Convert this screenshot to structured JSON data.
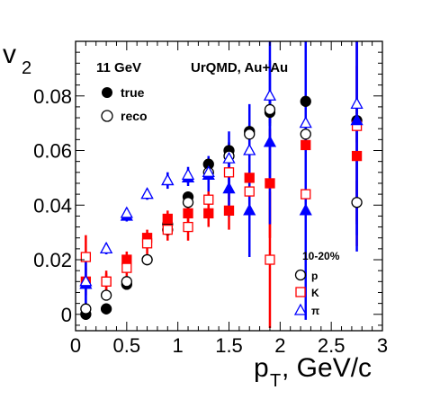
{
  "chart_data": {
    "type": "scatter",
    "title": "",
    "xlabel": "p",
    "xlabel_sub": "T",
    "xlabel_unit": ", GeV/c",
    "ylabel": "v",
    "ylabel_sub": "2",
    "xlim": [
      0,
      3
    ],
    "ylim": [
      -0.006,
      0.1
    ],
    "x_ticks": [
      "0",
      "0.5",
      "1",
      "1.5",
      "2",
      "2.5",
      "3"
    ],
    "y_ticks": [
      "0",
      "0.02",
      "0.04",
      "0.06",
      "0.08"
    ],
    "grid": false,
    "annotations": {
      "energy": "11 GeV",
      "system": "UrQMD, Au+Au",
      "centrality": "10-20%"
    },
    "legend_style": [
      {
        "label": "true",
        "marker": "filled-circle"
      },
      {
        "label": "reco",
        "marker": "open-circle"
      }
    ],
    "legend_species": [
      {
        "label": "p",
        "marker": "open-circle",
        "color": "#000000"
      },
      {
        "label": "K",
        "marker": "open-square",
        "color": "#ff0000"
      },
      {
        "label": "π",
        "marker": "open-triangle",
        "color": "#0000ff"
      }
    ],
    "colors": {
      "proton": "#000000",
      "kaon": "#ff0000",
      "pion": "#0000ff"
    },
    "series": [
      {
        "species": "p",
        "style": "true",
        "marker": "filled-circle",
        "color": "#000000",
        "x": [
          0.1,
          0.3,
          0.5,
          0.7,
          0.9,
          1.1,
          1.3,
          1.5,
          1.7,
          1.9,
          2.25,
          2.75
        ],
        "y": [
          0.0,
          0.002,
          0.011,
          0.02,
          0.033,
          0.043,
          0.055,
          0.06,
          0.067,
          0.074,
          0.078,
          0.071
        ],
        "err": [
          0.002,
          0.002,
          0.002,
          0.002,
          0.002,
          0.002,
          0.002,
          0.003,
          0.004,
          0.005,
          0.006,
          0.008
        ]
      },
      {
        "species": "p",
        "style": "reco",
        "marker": "open-circle",
        "color": "#000000",
        "x": [
          0.1,
          0.3,
          0.5,
          0.7,
          0.9,
          1.1,
          1.3,
          1.5,
          1.7,
          1.9,
          2.25,
          2.75
        ],
        "y": [
          0.002,
          0.007,
          0.012,
          0.02,
          0.031,
          0.041,
          0.052,
          0.058,
          0.066,
          0.075,
          0.066,
          0.041
        ],
        "err": [
          0.002,
          0.002,
          0.002,
          0.002,
          0.002,
          0.002,
          0.003,
          0.003,
          0.004,
          0.005,
          0.006,
          0.008
        ]
      },
      {
        "species": "K",
        "style": "true",
        "marker": "filled-square",
        "color": "#ff0000",
        "x": [
          0.1,
          0.3,
          0.5,
          0.7,
          0.9,
          1.1,
          1.3,
          1.5,
          1.7,
          1.9,
          2.25,
          2.75
        ],
        "y": [
          0.012,
          0.012,
          0.02,
          0.028,
          0.035,
          0.037,
          0.037,
          0.038,
          0.05,
          0.048,
          0.062,
          0.058
        ],
        "err": [
          0.005,
          0.003,
          0.003,
          0.003,
          0.003,
          0.004,
          0.005,
          0.007,
          0.013,
          0.02,
          0.028,
          0.033
        ]
      },
      {
        "species": "K",
        "style": "reco",
        "marker": "open-square",
        "color": "#ff0000",
        "x": [
          0.1,
          0.3,
          0.5,
          0.7,
          0.9,
          1.1,
          1.3,
          1.5,
          1.7,
          1.9,
          2.25,
          2.75
        ],
        "y": [
          0.021,
          0.012,
          0.017,
          0.026,
          0.031,
          0.032,
          0.042,
          0.052,
          0.045,
          0.02,
          0.044,
          0.069
        ],
        "err": [
          0.008,
          0.004,
          0.004,
          0.004,
          0.004,
          0.005,
          0.007,
          0.01,
          0.015,
          0.025,
          0.03,
          0.035
        ]
      },
      {
        "species": "π",
        "style": "true",
        "marker": "filled-triangle",
        "color": "#0000ff",
        "x": [
          0.1,
          0.3,
          0.5,
          0.7,
          0.9,
          1.1,
          1.3,
          1.5,
          1.7,
          1.9,
          2.25,
          2.75
        ],
        "y": [
          0.011,
          0.024,
          0.036,
          0.044,
          0.049,
          0.05,
          0.051,
          0.046,
          0.038,
          0.063,
          0.038,
          0.071
        ],
        "err": [
          0.01,
          0.002,
          0.002,
          0.002,
          0.003,
          0.003,
          0.006,
          0.01,
          0.017,
          0.03,
          0.04,
          0.048
        ]
      },
      {
        "species": "π",
        "style": "reco",
        "marker": "open-triangle",
        "color": "#0000ff",
        "x": [
          0.1,
          0.3,
          0.5,
          0.7,
          0.9,
          1.1,
          1.3,
          1.5,
          1.7,
          1.9,
          2.25,
          2.75
        ],
        "y": [
          0.012,
          0.024,
          0.037,
          0.044,
          0.049,
          0.051,
          0.052,
          0.057,
          0.06,
          0.08,
          0.07,
          0.077
        ],
        "err": [
          0.01,
          0.002,
          0.002,
          0.002,
          0.003,
          0.003,
          0.006,
          0.01,
          0.017,
          0.03,
          0.04,
          0.048
        ]
      }
    ]
  }
}
